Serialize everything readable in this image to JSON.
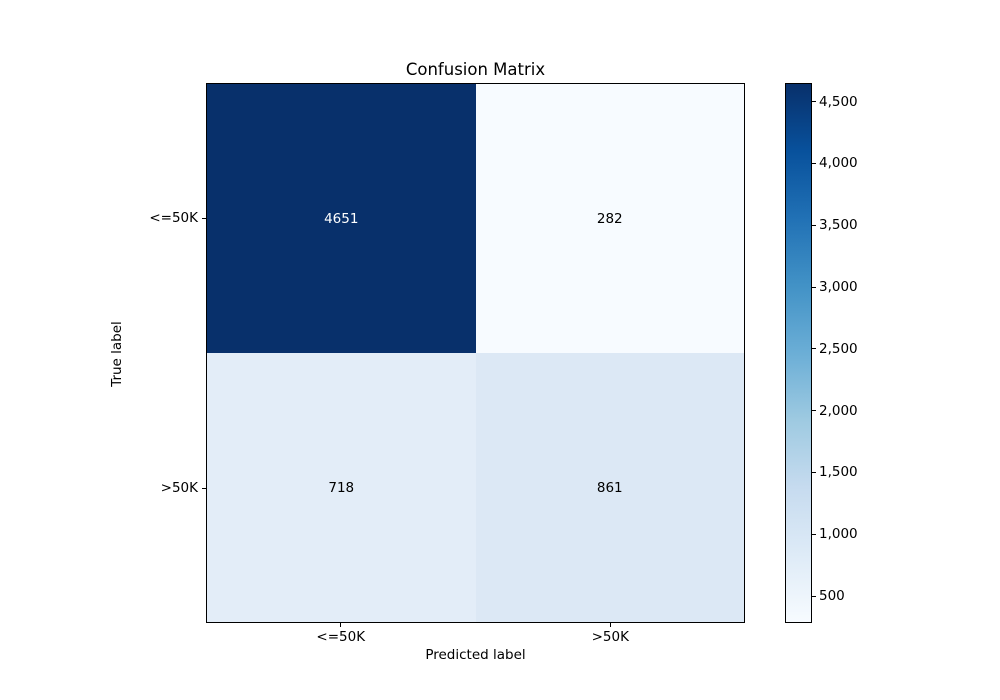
{
  "chart_data": {
    "type": "heatmap",
    "title": "Confusion Matrix",
    "xlabel": "Predicted label",
    "ylabel": "True label",
    "x_tick_labels": [
      "<=50K",
      ">50K"
    ],
    "y_tick_labels": [
      "<=50K",
      ">50K"
    ],
    "matrix": [
      [
        4651,
        282
      ],
      [
        718,
        861
      ]
    ],
    "cell_value_labels": [
      [
        "4651",
        "282"
      ],
      [
        "718",
        "861"
      ]
    ],
    "cell_colors": [
      [
        "#08306b",
        "#f7fbff"
      ],
      [
        "#e3edf8",
        "#dce8f5"
      ]
    ],
    "cell_text_colors": [
      [
        "#ffffff",
        "#000000"
      ],
      [
        "#000000",
        "#000000"
      ]
    ],
    "colormap_name": "Blues",
    "colormap_stops_top_to_bottom": [
      "#08306b",
      "#08519c",
      "#2171b5",
      "#4292c6",
      "#6baed6",
      "#9ecae1",
      "#c6dbef",
      "#deebf7",
      "#f7fbff"
    ],
    "vmin": 282,
    "vmax": 4651,
    "colorbar_ticks": [
      {
        "value": 500,
        "label": "500"
      },
      {
        "value": 1000,
        "label": "1,000"
      },
      {
        "value": 1500,
        "label": "1,500"
      },
      {
        "value": 2000,
        "label": "2,000"
      },
      {
        "value": 2500,
        "label": "2,500"
      },
      {
        "value": 3000,
        "label": "3,000"
      },
      {
        "value": 3500,
        "label": "3,500"
      },
      {
        "value": 4000,
        "label": "4,000"
      },
      {
        "value": 4500,
        "label": "4,500"
      }
    ],
    "legend": "none",
    "grid": false,
    "background_color": "#ffffff",
    "axes_edge_color": "#000000"
  }
}
